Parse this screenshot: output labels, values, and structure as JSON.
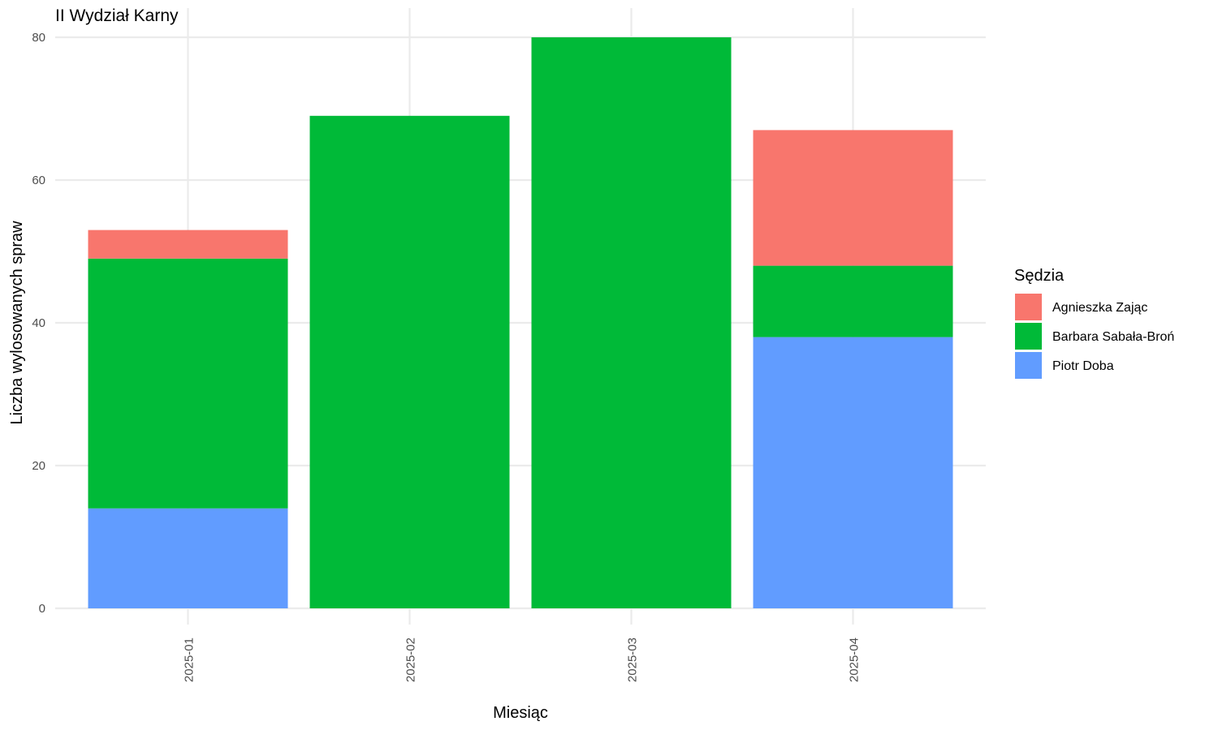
{
  "chart_data": {
    "type": "bar",
    "stacked": true,
    "title": "II Wydział Karny",
    "xlabel": "Miesiąc",
    "ylabel": "Liczba wylosowanych spraw",
    "categories": [
      "2025-01",
      "2025-02",
      "2025-03",
      "2025-04"
    ],
    "ylim": [
      0,
      80
    ],
    "yticks": [
      0,
      20,
      40,
      60,
      80
    ],
    "grid": true,
    "legend": {
      "title": "Sędzia",
      "placement": "right"
    },
    "series": [
      {
        "name": "Piotr Doba",
        "color": "#619cff",
        "values": [
          14,
          0,
          0,
          38
        ]
      },
      {
        "name": "Barbara Sabała-Broń",
        "color": "#00ba38",
        "values": [
          35,
          69,
          80,
          10
        ]
      },
      {
        "name": "Agnieszka Zając",
        "color": "#f8766d",
        "values": [
          4,
          0,
          0,
          19
        ]
      }
    ],
    "legend_order": [
      "Agnieszka Zając",
      "Barbara Sabała-Broń",
      "Piotr Doba"
    ]
  }
}
